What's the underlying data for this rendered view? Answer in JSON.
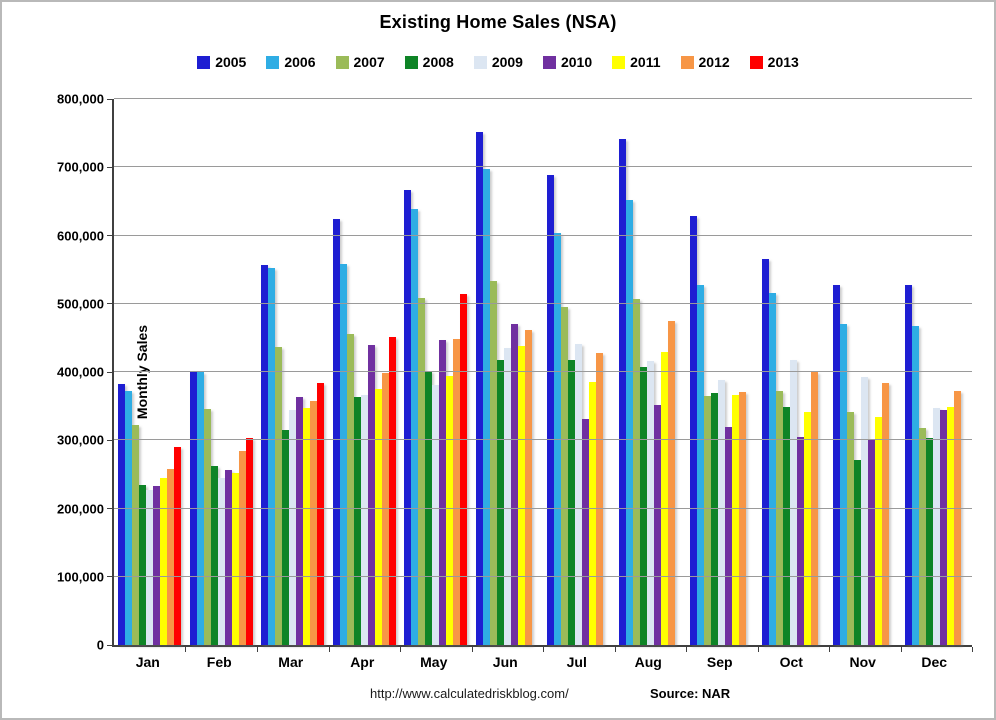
{
  "title": "Existing Home Sales (NSA)",
  "footer": {
    "url": "http://www.calculatedriskblog.com/",
    "source": "Source: NAR"
  },
  "chart_data": {
    "type": "bar",
    "title": "Existing Home Sales (NSA)",
    "xlabel": "",
    "ylabel": "Monthly Sales",
    "ylim": [
      0,
      800000
    ],
    "ytick_step": 100000,
    "grid": true,
    "legend_position": "top",
    "categories": [
      "Jan",
      "Feb",
      "Mar",
      "Apr",
      "May",
      "Jun",
      "Jul",
      "Aug",
      "Sep",
      "Oct",
      "Nov",
      "Dec"
    ],
    "series": [
      {
        "name": "2005",
        "color": "#1e1ed2",
        "values": [
          383000,
          401000,
          557000,
          624000,
          666000,
          751000,
          689000,
          741000,
          629000,
          565000,
          528000,
          527000
        ]
      },
      {
        "name": "2006",
        "color": "#2fade4",
        "values": [
          372000,
          400000,
          552000,
          558000,
          639000,
          698000,
          603000,
          652000,
          527000,
          516000,
          470000,
          467000
        ]
      },
      {
        "name": "2007",
        "color": "#9bbb59",
        "values": [
          323000,
          346000,
          436000,
          456000,
          509000,
          534000,
          495000,
          507000,
          365000,
          372000,
          341000,
          318000
        ]
      },
      {
        "name": "2008",
        "color": "#0e8426",
        "values": [
          234000,
          262000,
          315000,
          363000,
          402000,
          418000,
          417000,
          408000,
          369000,
          349000,
          271000,
          304000
        ]
      },
      {
        "name": "2009",
        "color": "#dce6f2",
        "values": [
          227000,
          244000,
          345000,
          366000,
          381000,
          435000,
          441000,
          416000,
          389000,
          417000,
          393000,
          347000
        ]
      },
      {
        "name": "2010",
        "color": "#7030a0",
        "values": [
          233000,
          256000,
          364000,
          440000,
          447000,
          471000,
          331000,
          351000,
          320000,
          305000,
          302000,
          344000
        ]
      },
      {
        "name": "2011",
        "color": "#ffff00",
        "values": [
          245000,
          252000,
          348000,
          375000,
          394000,
          438000,
          385000,
          429000,
          367000,
          342000,
          334000,
          349000
        ]
      },
      {
        "name": "2012",
        "color": "#f79646",
        "values": [
          258000,
          285000,
          358000,
          399000,
          448000,
          462000,
          428000,
          475000,
          371000,
          400000,
          384000,
          372000
        ]
      },
      {
        "name": "2013",
        "color": "#ff0000",
        "values": [
          290000,
          303000,
          384000,
          452000,
          515000,
          null,
          null,
          null,
          null,
          null,
          null,
          null
        ]
      }
    ]
  }
}
